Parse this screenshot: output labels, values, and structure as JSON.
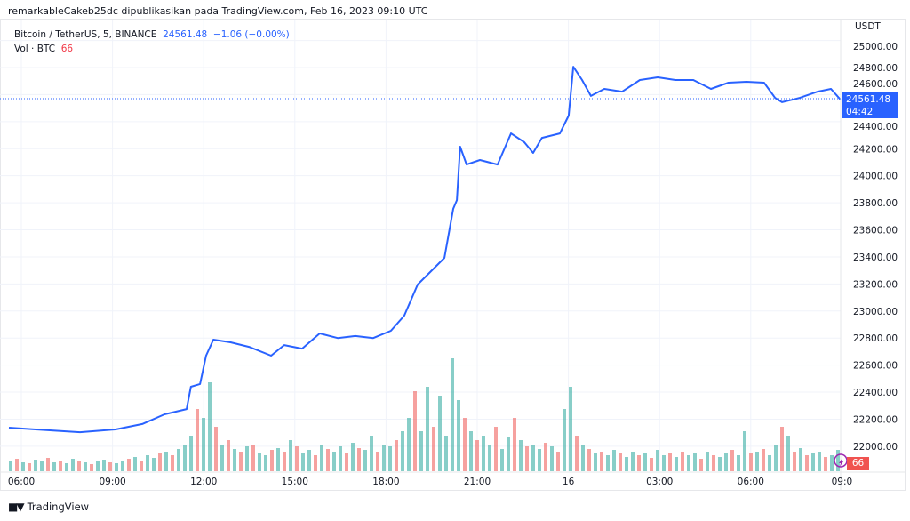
{
  "header": {
    "published_by": "remarkableCakeb25dc dipublikasikan pada TradingView.com, Feb 16, 2023 09:10 UTC"
  },
  "legend": {
    "symbol": "Bitcoin / TetherUS, 5, BINANCE",
    "last_price": "24561.48",
    "change": "−1.06 (−0.00%)",
    "volume_label": "Vol · BTC",
    "volume_value": "66"
  },
  "price_axis": {
    "currency": "USDT",
    "current_price": "24561.48",
    "countdown": "04:42",
    "volume_tag": "66"
  },
  "footer": {
    "brand": "TradingView",
    "logo_text": "TV"
  },
  "colors": {
    "line": "#2962ff",
    "up": "#26a69a",
    "down": "#ef5350",
    "grid": "#f0f3fa"
  },
  "chart_data": {
    "type": "line",
    "title": "Bitcoin / TetherUS, 5, BINANCE",
    "ylabel": "USDT",
    "ylim": [
      21850,
      25050
    ],
    "xlim_hours_since_0600": [
      -0.7,
      27.0
    ],
    "y_ticks": [
      "25000.00",
      "24800.00",
      "24600.00",
      "24400.00",
      "24200.00",
      "24000.00",
      "23800.00",
      "23600.00",
      "23400.00",
      "23200.00",
      "23000.00",
      "22800.00",
      "22600.00",
      "22400.00",
      "22200.00",
      "22000.00"
    ],
    "x_ticks": [
      {
        "label": "06:00",
        "h": 0
      },
      {
        "label": "09:00",
        "h": 3
      },
      {
        "label": "12:00",
        "h": 6
      },
      {
        "label": "15:00",
        "h": 9
      },
      {
        "label": "18:00",
        "h": 12
      },
      {
        "label": "21:00",
        "h": 15
      },
      {
        "label": "16",
        "h": 18
      },
      {
        "label": "03:00",
        "h": 21
      },
      {
        "label": "06:00",
        "h": 24
      },
      {
        "label": "09:0",
        "h": 27
      }
    ],
    "price_series": [
      [
        -0.41,
        22137
      ],
      [
        0.47,
        22124
      ],
      [
        1.93,
        22104
      ],
      [
        3.1,
        22124
      ],
      [
        3.98,
        22164
      ],
      [
        4.71,
        22236
      ],
      [
        5.44,
        22275
      ],
      [
        5.58,
        22440
      ],
      [
        5.88,
        22460
      ],
      [
        6.08,
        22670
      ],
      [
        6.32,
        22788
      ],
      [
        6.9,
        22768
      ],
      [
        7.49,
        22735
      ],
      [
        8.22,
        22670
      ],
      [
        8.65,
        22748
      ],
      [
        9.24,
        22722
      ],
      [
        9.82,
        22834
      ],
      [
        10.41,
        22800
      ],
      [
        10.99,
        22815
      ],
      [
        11.58,
        22800
      ],
      [
        12.16,
        22854
      ],
      [
        12.6,
        22966
      ],
      [
        13.04,
        23196
      ],
      [
        13.63,
        23327
      ],
      [
        13.92,
        23393
      ],
      [
        14.21,
        23755
      ],
      [
        14.33,
        23820
      ],
      [
        14.44,
        24215
      ],
      [
        14.65,
        24083
      ],
      [
        15.09,
        24116
      ],
      [
        15.67,
        24083
      ],
      [
        16.11,
        24313
      ],
      [
        16.55,
        24248
      ],
      [
        16.84,
        24169
      ],
      [
        17.13,
        24280
      ],
      [
        17.72,
        24313
      ],
      [
        18.01,
        24445
      ],
      [
        18.16,
        24806
      ],
      [
        18.45,
        24708
      ],
      [
        18.74,
        24590
      ],
      [
        19.18,
        24642
      ],
      [
        19.77,
        24622
      ],
      [
        20.35,
        24708
      ],
      [
        20.94,
        24728
      ],
      [
        21.52,
        24708
      ],
      [
        22.11,
        24708
      ],
      [
        22.69,
        24642
      ],
      [
        23.27,
        24688
      ],
      [
        23.86,
        24695
      ],
      [
        24.44,
        24688
      ],
      [
        24.8,
        24576
      ],
      [
        25.03,
        24544
      ],
      [
        25.61,
        24576
      ],
      [
        26.2,
        24622
      ],
      [
        26.64,
        24642
      ],
      [
        26.96,
        24561.48
      ]
    ],
    "volume_series": [
      12,
      -14,
      10,
      -9,
      13,
      11,
      -15,
      10,
      -12,
      9,
      14,
      -11,
      10,
      -8,
      12,
      13,
      -10,
      9,
      11,
      -14,
      16,
      -12,
      18,
      15,
      -20,
      22,
      -18,
      25,
      30,
      40,
      -70,
      60,
      100,
      -50,
      30,
      -35,
      25,
      -22,
      28,
      -30,
      20,
      18,
      -24,
      26,
      -22,
      35,
      -28,
      20,
      24,
      -18,
      30,
      -25,
      22,
      28,
      -20,
      32,
      -26,
      24,
      40,
      -22,
      30,
      28,
      -35,
      45,
      60,
      -90,
      45,
      95,
      -50,
      85,
      40,
      127,
      80,
      -60,
      45,
      -35,
      40,
      30,
      -50,
      25,
      38,
      -60,
      35,
      -28,
      30,
      25,
      -32,
      28,
      -22,
      70,
      95,
      -40,
      30,
      -25,
      20,
      -22,
      18,
      24,
      -20,
      16,
      22,
      -18,
      20,
      -15,
      24,
      18,
      -20,
      16,
      -22,
      18,
      20,
      -14,
      22,
      -18,
      16,
      20,
      -24,
      18,
      45,
      -20,
      22,
      -25,
      18,
      30,
      -50,
      40,
      -22,
      26,
      -18,
      20,
      22,
      -16,
      18,
      24
    ]
  }
}
